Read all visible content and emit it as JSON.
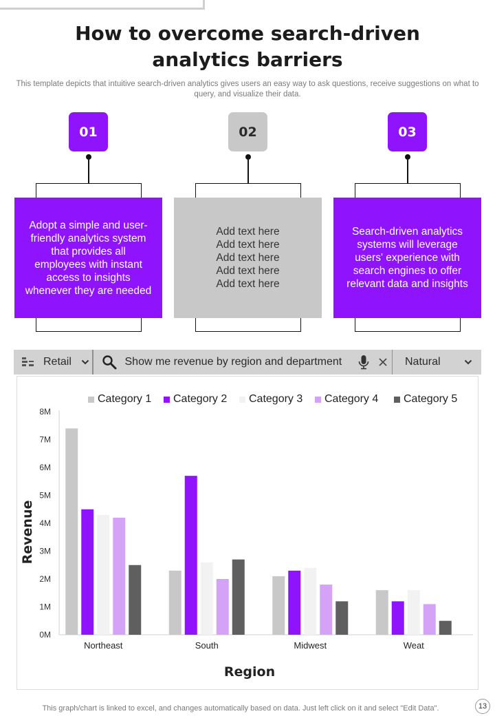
{
  "page": {
    "title_line1": "How to overcome search-driven",
    "title_line2": "analytics barriers",
    "subtitle": "This template depicts that intuitive search-driven analytics gives users an easy way to ask questions, receive suggestions on what to query, and visualize their data.",
    "footer": "This graph/chart is linked to excel, and changes automatically based on data. Just left click on it and select \"Edit Data\".",
    "page_number": "13"
  },
  "steps": [
    {
      "number": "01",
      "style": "purple",
      "lines": [
        "Adopt a simple and user-",
        "friendly analytics system",
        "that provides all",
        "employees with instant",
        "access to insights",
        "whenever they are needed"
      ]
    },
    {
      "number": "02",
      "style": "gray",
      "lines": [
        "Add text here",
        "Add text here",
        "Add text here",
        "Add text here",
        "Add text here"
      ]
    },
    {
      "number": "03",
      "style": "purple",
      "lines": [
        "Search-driven analytics",
        "systems will leverage",
        "users' experience with",
        "search engines to offer",
        "relevant data and insights"
      ]
    }
  ],
  "searchbar": {
    "dataset_icon": "dataset-icon",
    "dataset_label": "Retail",
    "search_icon": "search-icon",
    "query": "Show me revenue by region and department",
    "mic_icon": "microphone-icon",
    "clear_icon": "close-icon",
    "mode_label": "Natural",
    "chevron_icon": "chevron-down-icon"
  },
  "colors": {
    "accent": "#9013fe",
    "gray": "#c8c8c8",
    "cat1": "#c8c8c8",
    "cat2": "#9013fe",
    "cat3": "#f2f2f2",
    "cat4": "#d4a3f7",
    "cat5": "#5f5f5f"
  },
  "chart_data": {
    "type": "bar",
    "categories": [
      "Northeast",
      "South",
      "Midwest",
      "Weat"
    ],
    "series": [
      {
        "name": "Category 1",
        "values": [
          7.4,
          2.3,
          2.1,
          1.6
        ]
      },
      {
        "name": "Category 2",
        "values": [
          4.5,
          5.7,
          2.3,
          1.2
        ]
      },
      {
        "name": "Category 3",
        "values": [
          4.3,
          2.6,
          2.4,
          1.6
        ]
      },
      {
        "name": "Category 4",
        "values": [
          4.2,
          2.0,
          1.8,
          1.1
        ]
      },
      {
        "name": "Category 5",
        "values": [
          2.5,
          2.7,
          1.2,
          0.5
        ]
      }
    ],
    "yticks": [
      "0M",
      "1M",
      "2M",
      "3M",
      "4M",
      "5M",
      "6M",
      "7M",
      "8M"
    ],
    "ylim": [
      0,
      8
    ],
    "xlabel": "Region",
    "ylabel": "Revenue",
    "legend_position": "top",
    "grid": false
  }
}
